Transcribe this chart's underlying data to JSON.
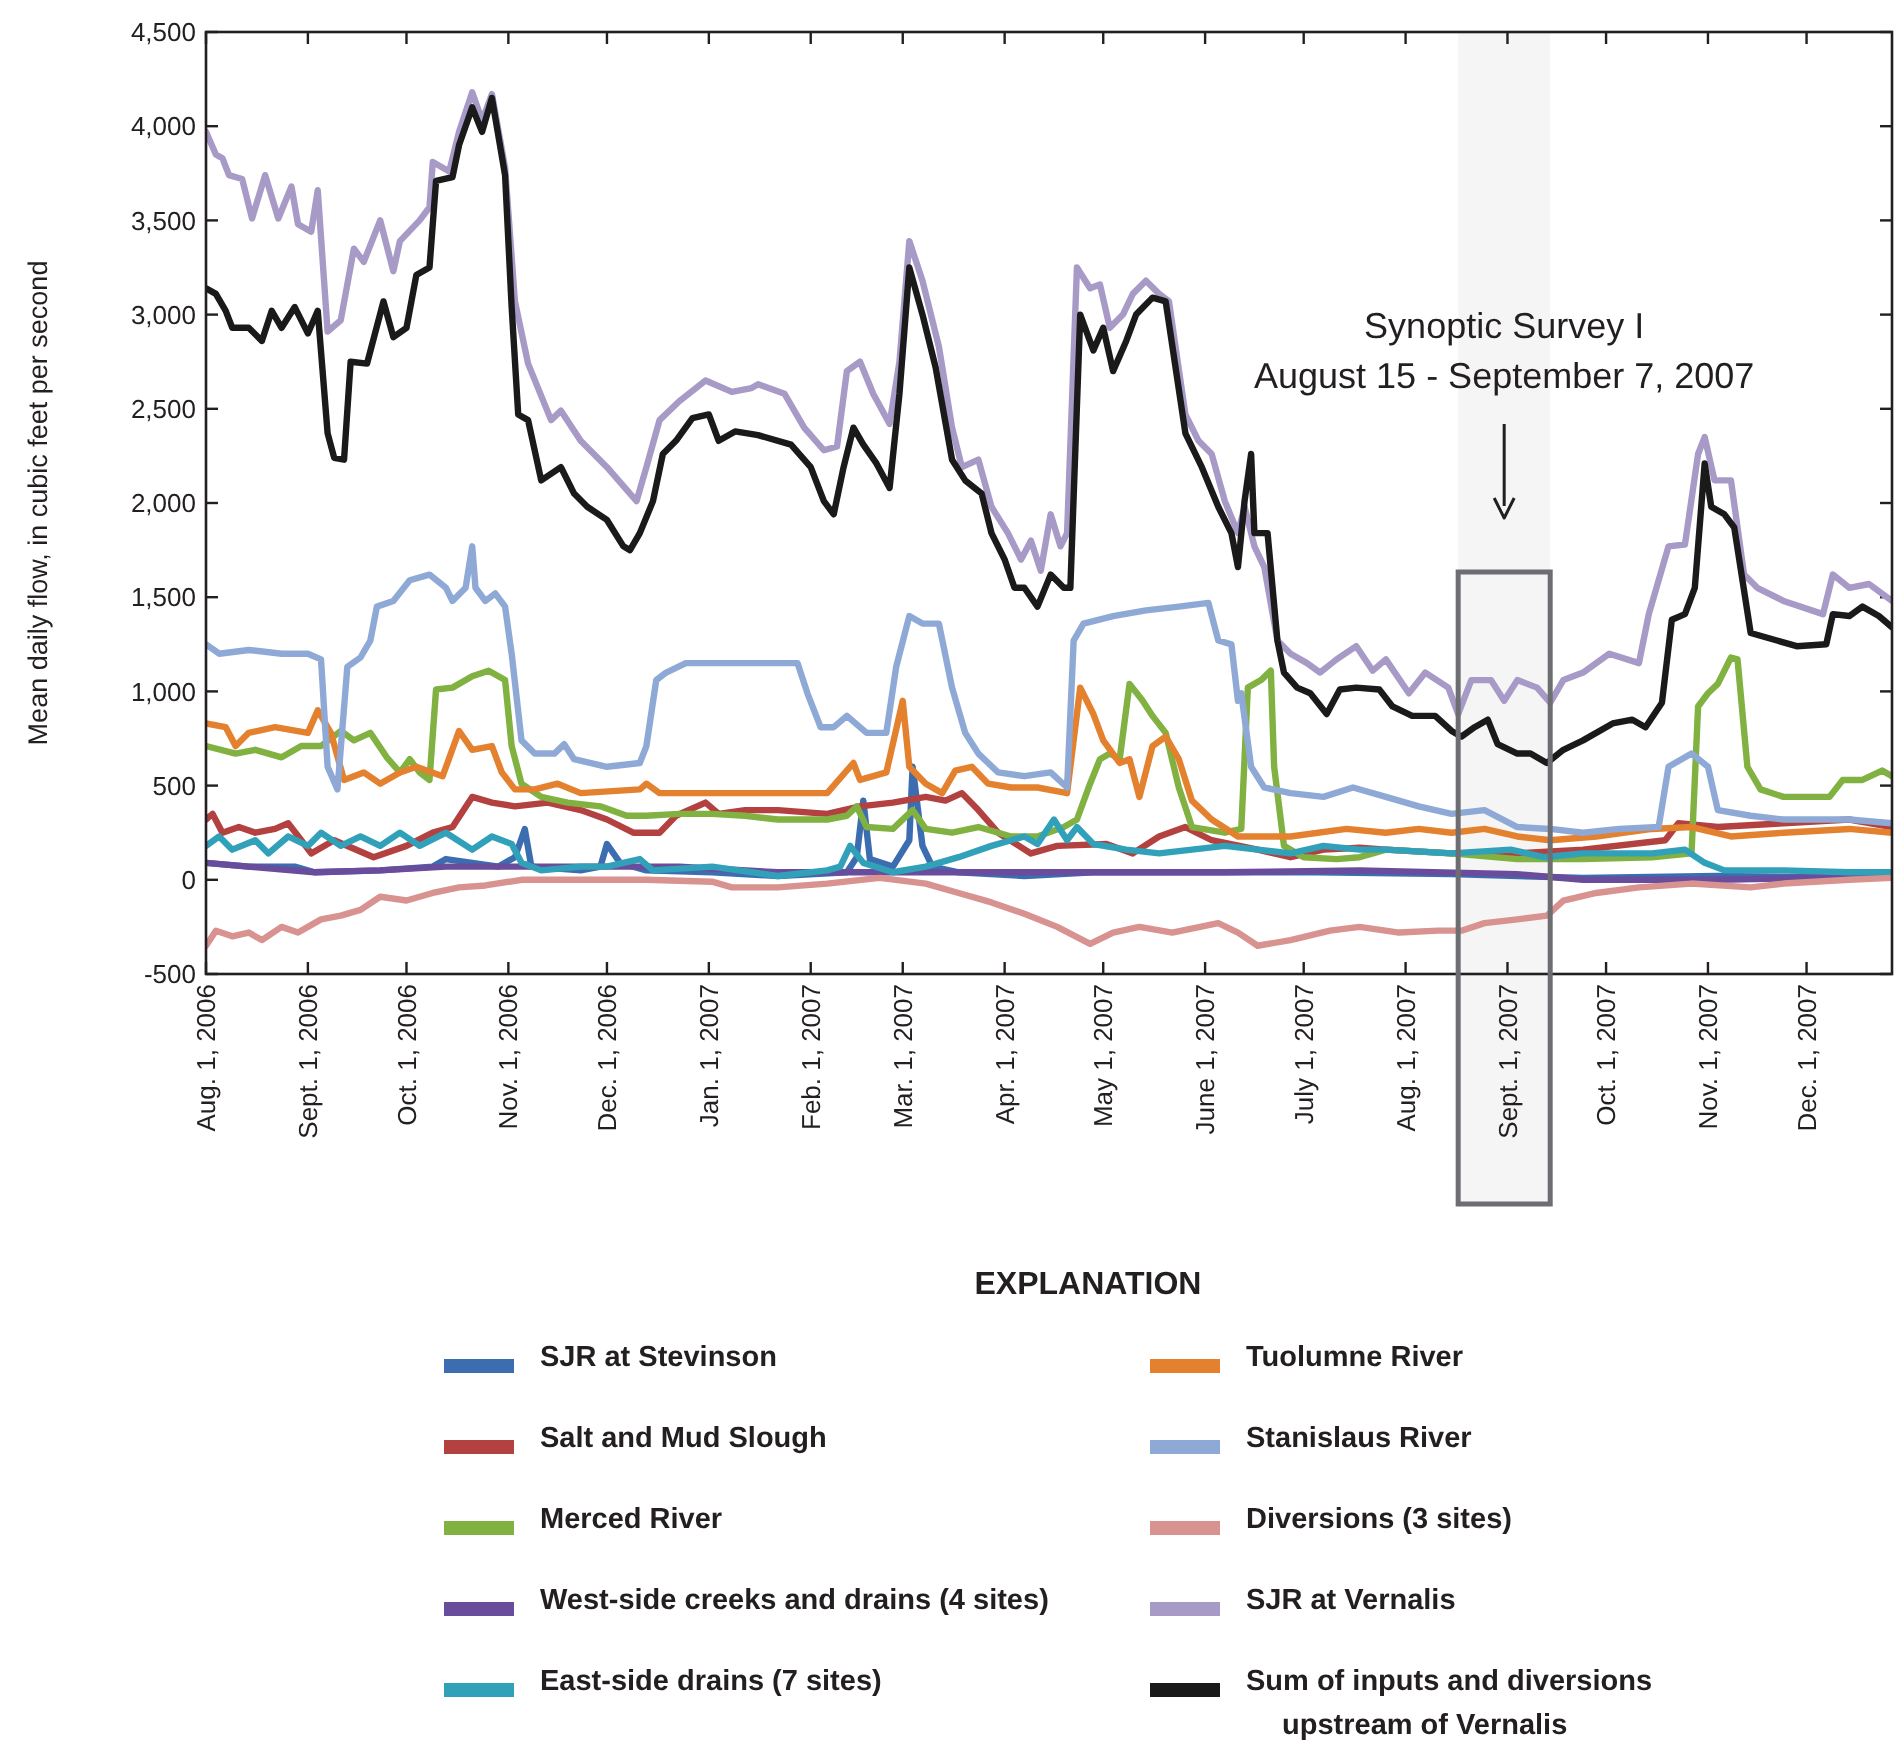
{
  "chart_data": {
    "type": "line",
    "ylabel": "Mean daily flow, in cubic feet per second",
    "legend": "bottom",
    "legend_title": "EXPLANATION",
    "xlim": [
      "2006-08-01",
      "2007-12-27"
    ],
    "xticks": [
      {
        "value": "2006-08-01",
        "label": "Aug. 1, 2006"
      },
      {
        "value": "2006-09-01",
        "label": "Sept. 1, 2006"
      },
      {
        "value": "2006-10-01",
        "label": "Oct. 1, 2006"
      },
      {
        "value": "2006-11-01",
        "label": "Nov. 1, 2006"
      },
      {
        "value": "2006-12-01",
        "label": "Dec. 1, 2006"
      },
      {
        "value": "2007-01-01",
        "label": "Jan. 1, 2007"
      },
      {
        "value": "2007-02-01",
        "label": "Feb. 1, 2007"
      },
      {
        "value": "2007-03-01",
        "label": "Mar. 1, 2007"
      },
      {
        "value": "2007-04-01",
        "label": "Apr. 1, 2007"
      },
      {
        "value": "2007-05-01",
        "label": "May 1, 2007"
      },
      {
        "value": "2007-06-01",
        "label": "June 1, 2007"
      },
      {
        "value": "2007-07-01",
        "label": "July 1, 2007"
      },
      {
        "value": "2007-08-01",
        "label": "Aug. 1, 2007"
      },
      {
        "value": "2007-09-01",
        "label": "Sept. 1, 2007"
      },
      {
        "value": "2007-10-01",
        "label": "Oct. 1, 2007"
      },
      {
        "value": "2007-11-01",
        "label": "Nov. 1, 2007"
      },
      {
        "value": "2007-12-01",
        "label": "Dec. 1, 2007"
      }
    ],
    "ylim": [
      -500,
      4500
    ],
    "yticks": [
      -500,
      0,
      500,
      {
        "value": 1000,
        "label": "1,000"
      },
      {
        "value": 1500,
        "label": "1,500"
      },
      {
        "value": 2000,
        "label": "2,000"
      },
      {
        "value": 2500,
        "label": "2,500"
      },
      {
        "value": 3000,
        "label": "3,000"
      },
      {
        "value": 3500,
        "label": "3,500"
      },
      {
        "value": 4000,
        "label": "4,000"
      },
      {
        "value": 4500,
        "label": "4,500"
      }
    ],
    "bands": [
      {
        "axis": "x",
        "from": "2007-08-17",
        "to": "2007-09-14",
        "label": "Synoptic Survey I\nAugust 15 - September 7, 2007",
        "color": "#6d6e71"
      }
    ],
    "series": [
      {
        "name": "SJR at Stevinson",
        "color": "#3b6db0",
        "x": [
          "2006-08-01",
          "2006-08-14",
          "2006-08-28",
          "2006-09-03",
          "2006-09-23",
          "2006-10-09",
          "2006-10-13",
          "2006-10-29",
          "2006-11-03",
          "2006-11-06",
          "2006-11-08",
          "2006-11-23",
          "2006-11-29",
          "2006-12-01",
          "2006-12-05",
          "2006-12-13",
          "2007-01-02",
          "2007-01-22",
          "2007-02-12",
          "2007-02-15",
          "2007-02-17",
          "2007-02-19",
          "2007-02-26",
          "2007-03-03",
          "2007-03-04",
          "2007-03-07",
          "2007-03-10",
          "2007-03-18",
          "2007-04-07",
          "2007-04-28",
          "2007-06-07",
          "2007-07-05",
          "2007-08-15",
          "2007-09-24",
          "2007-11-04",
          "2007-12-27"
        ],
        "values": [
          90,
          70,
          70,
          40,
          50,
          70,
          110,
          70,
          120,
          270,
          70,
          50,
          70,
          190,
          90,
          50,
          40,
          20,
          40,
          120,
          420,
          110,
          70,
          210,
          600,
          180,
          70,
          40,
          20,
          40,
          40,
          40,
          30,
          10,
          20,
          10
        ]
      },
      {
        "name": "Salt and Mud Slough",
        "color": "#b2413f",
        "x": [
          "2006-08-01",
          "2006-08-03",
          "2006-08-06",
          "2006-08-11",
          "2006-08-16",
          "2006-08-22",
          "2006-08-26",
          "2006-08-30",
          "2006-09-02",
          "2006-09-09",
          "2006-09-21",
          "2006-10-01",
          "2006-10-09",
          "2006-10-15",
          "2006-10-21",
          "2006-10-27",
          "2006-11-03",
          "2006-11-13",
          "2006-11-23",
          "2006-12-01",
          "2006-12-09",
          "2006-12-17",
          "2006-12-22",
          "2006-12-31",
          "2007-01-04",
          "2007-01-12",
          "2007-01-22",
          "2007-02-06",
          "2007-02-16",
          "2007-02-26",
          "2007-03-08",
          "2007-03-14",
          "2007-03-19",
          "2007-03-24",
          "2007-03-30",
          "2007-04-09",
          "2007-04-17",
          "2007-05-02",
          "2007-05-10",
          "2007-05-18",
          "2007-05-26",
          "2007-06-03",
          "2007-06-17",
          "2007-06-27",
          "2007-07-07",
          "2007-07-18",
          "2007-07-26",
          "2007-08-15",
          "2007-09-04",
          "2007-09-24",
          "2007-10-19",
          "2007-10-23",
          "2007-11-04",
          "2007-11-24",
          "2007-12-14",
          "2007-12-27"
        ],
        "values": [
          320,
          350,
          250,
          280,
          250,
          270,
          300,
          210,
          140,
          210,
          120,
          180,
          250,
          280,
          440,
          410,
          390,
          410,
          370,
          320,
          250,
          250,
          340,
          410,
          350,
          370,
          370,
          350,
          390,
          410,
          440,
          420,
          460,
          370,
          250,
          140,
          180,
          190,
          140,
          230,
          280,
          210,
          160,
          120,
          160,
          170,
          160,
          140,
          140,
          160,
          210,
          300,
          280,
          300,
          320,
          280
        ]
      },
      {
        "name": "Merced River",
        "color": "#80b141",
        "x": [
          "2006-08-01",
          "2006-08-10",
          "2006-08-16",
          "2006-08-24",
          "2006-08-30",
          "2006-09-05",
          "2006-09-11",
          "2006-09-15",
          "2006-09-20",
          "2006-09-25",
          "2006-09-29",
          "2006-10-02",
          "2006-10-05",
          "2006-10-08",
          "2006-10-10",
          "2006-10-15",
          "2006-10-21",
          "2006-10-26",
          "2006-10-31",
          "2006-11-02",
          "2006-11-05",
          "2006-11-11",
          "2006-11-19",
          "2006-11-29",
          "2006-12-07",
          "2006-12-13",
          "2006-12-23",
          "2007-01-02",
          "2007-01-12",
          "2007-01-22",
          "2007-02-06",
          "2007-02-12",
          "2007-02-15",
          "2007-02-18",
          "2007-02-26",
          "2007-03-04",
          "2007-03-08",
          "2007-03-16",
          "2007-03-24",
          "2007-04-03",
          "2007-04-11",
          "2007-04-19",
          "2007-04-23",
          "2007-04-27",
          "2007-04-30",
          "2007-05-03",
          "2007-05-06",
          "2007-05-09",
          "2007-05-13",
          "2007-05-16",
          "2007-05-20",
          "2007-05-24",
          "2007-05-28",
          "2007-06-07",
          "2007-06-12",
          "2007-06-14",
          "2007-06-18",
          "2007-06-21",
          "2007-06-22",
          "2007-06-25",
          "2007-07-01",
          "2007-07-11",
          "2007-07-18",
          "2007-07-26",
          "2007-08-15",
          "2007-09-04",
          "2007-09-24",
          "2007-10-15",
          "2007-10-27",
          "2007-10-29",
          "2007-11-01",
          "2007-11-04",
          "2007-11-08",
          "2007-11-10",
          "2007-11-13",
          "2007-11-17",
          "2007-11-24",
          "2007-12-08",
          "2007-12-12",
          "2007-12-18",
          "2007-12-24",
          "2007-12-27"
        ],
        "values": [
          710,
          670,
          690,
          650,
          710,
          710,
          790,
          740,
          780,
          650,
          570,
          640,
          570,
          530,
          1010,
          1020,
          1080,
          1110,
          1060,
          710,
          510,
          440,
          410,
          390,
          340,
          340,
          350,
          350,
          340,
          320,
          320,
          340,
          390,
          280,
          270,
          370,
          270,
          250,
          280,
          230,
          230,
          280,
          320,
          510,
          640,
          670,
          640,
          1040,
          950,
          870,
          780,
          490,
          280,
          250,
          270,
          1020,
          1060,
          1110,
          600,
          180,
          120,
          110,
          120,
          160,
          140,
          110,
          110,
          120,
          140,
          920,
          990,
          1040,
          1180,
          1170,
          600,
          480,
          440,
          440,
          530,
          530,
          580,
          550
        ]
      },
      {
        "name": "West-side creeks and drains (4 sites)",
        "color": "#6a4c9c",
        "x": [
          "2006-08-01",
          "2006-08-14",
          "2006-09-03",
          "2006-09-23",
          "2006-10-13",
          "2006-11-03",
          "2006-11-23",
          "2006-12-23",
          "2007-01-22",
          "2007-04-07",
          "2007-06-07",
          "2007-07-18",
          "2007-09-04",
          "2007-09-24",
          "2007-11-04",
          "2007-12-27"
        ],
        "values": [
          90,
          70,
          40,
          50,
          70,
          70,
          70,
          70,
          40,
          40,
          40,
          50,
          30,
          0,
          0,
          20
        ]
      },
      {
        "name": "East-side drains (7 sites)",
        "color": "#31a1ba",
        "x": [
          "2006-08-01",
          "2006-08-05",
          "2006-08-09",
          "2006-08-16",
          "2006-08-20",
          "2006-08-26",
          "2006-09-01",
          "2006-09-05",
          "2006-09-11",
          "2006-09-17",
          "2006-09-23",
          "2006-09-29",
          "2006-10-05",
          "2006-10-13",
          "2006-10-21",
          "2006-10-27",
          "2006-11-02",
          "2006-11-05",
          "2006-11-11",
          "2006-11-23",
          "2006-12-01",
          "2006-12-11",
          "2006-12-15",
          "2007-01-02",
          "2007-01-22",
          "2007-02-06",
          "2007-02-10",
          "2007-02-13",
          "2007-02-17",
          "2007-02-26",
          "2007-03-08",
          "2007-03-18",
          "2007-03-28",
          "2007-04-07",
          "2007-04-11",
          "2007-04-16",
          "2007-04-20",
          "2007-04-23",
          "2007-04-28",
          "2007-05-08",
          "2007-05-18",
          "2007-05-28",
          "2007-06-07",
          "2007-06-17",
          "2007-06-27",
          "2007-07-07",
          "2007-07-18",
          "2007-07-26",
          "2007-08-15",
          "2007-09-02",
          "2007-09-12",
          "2007-09-24",
          "2007-10-15",
          "2007-10-25",
          "2007-10-31",
          "2007-11-06",
          "2007-11-24",
          "2007-12-14",
          "2007-12-27"
        ],
        "values": [
          180,
          230,
          160,
          210,
          140,
          230,
          180,
          250,
          180,
          230,
          180,
          250,
          180,
          250,
          160,
          230,
          190,
          90,
          50,
          70,
          70,
          110,
          50,
          70,
          20,
          50,
          70,
          180,
          90,
          40,
          70,
          120,
          180,
          230,
          190,
          320,
          210,
          280,
          190,
          160,
          140,
          160,
          180,
          160,
          140,
          180,
          160,
          160,
          140,
          160,
          120,
          140,
          140,
          160,
          90,
          50,
          50,
          40,
          40
        ]
      },
      {
        "name": "Tuolumne River",
        "color": "#e4812f",
        "x": [
          "2006-08-01",
          "2006-08-07",
          "2006-08-10",
          "2006-08-14",
          "2006-08-22",
          "2006-09-01",
          "2006-09-04",
          "2006-09-08",
          "2006-09-12",
          "2006-09-18",
          "2006-09-23",
          "2006-09-29",
          "2006-10-04",
          "2006-10-12",
          "2006-10-17",
          "2006-10-21",
          "2006-10-27",
          "2006-10-30",
          "2006-11-03",
          "2006-11-09",
          "2006-11-16",
          "2006-11-23",
          "2006-12-11",
          "2006-12-13",
          "2006-12-17",
          "2007-01-02",
          "2007-02-06",
          "2007-02-14",
          "2007-02-16",
          "2007-02-24",
          "2007-03-01",
          "2007-03-03",
          "2007-03-08",
          "2007-03-13",
          "2007-03-17",
          "2007-03-22",
          "2007-03-27",
          "2007-04-03",
          "2007-04-11",
          "2007-04-20",
          "2007-04-24",
          "2007-04-28",
          "2007-05-01",
          "2007-05-06",
          "2007-05-09",
          "2007-05-12",
          "2007-05-16",
          "2007-05-20",
          "2007-05-24",
          "2007-05-28",
          "2007-06-03",
          "2007-06-11",
          "2007-06-27",
          "2007-07-14",
          "2007-07-26",
          "2007-08-05",
          "2007-08-15",
          "2007-08-25",
          "2007-09-04",
          "2007-09-14",
          "2007-09-28",
          "2007-10-15",
          "2007-10-27",
          "2007-11-08",
          "2007-11-24",
          "2007-12-14",
          "2007-12-27"
        ],
        "values": [
          830,
          810,
          710,
          780,
          810,
          780,
          900,
          780,
          530,
          570,
          510,
          570,
          600,
          550,
          790,
          690,
          710,
          570,
          480,
          480,
          510,
          460,
          480,
          510,
          460,
          460,
          460,
          620,
          530,
          570,
          950,
          600,
          510,
          460,
          580,
          600,
          510,
          490,
          490,
          460,
          1020,
          880,
          740,
          620,
          640,
          440,
          710,
          760,
          640,
          420,
          320,
          230,
          230,
          270,
          250,
          270,
          250,
          270,
          230,
          210,
          230,
          270,
          280,
          230,
          250,
          270,
          250
        ]
      },
      {
        "name": "Stanislaus River",
        "color": "#8fa9d6",
        "x": [
          "2006-08-01",
          "2006-08-05",
          "2006-08-14",
          "2006-08-24",
          "2006-09-01",
          "2006-09-05",
          "2006-09-07",
          "2006-09-10",
          "2006-09-13",
          "2006-09-17",
          "2006-09-20",
          "2006-09-22",
          "2006-09-27",
          "2006-10-02",
          "2006-10-08",
          "2006-10-13",
          "2006-10-15",
          "2006-10-19",
          "2006-10-21",
          "2006-10-22",
          "2006-10-25",
          "2006-10-28",
          "2006-10-31",
          "2006-11-02",
          "2006-11-05",
          "2006-11-09",
          "2006-11-15",
          "2006-11-18",
          "2006-11-21",
          "2006-12-01",
          "2006-12-11",
          "2006-12-13",
          "2006-12-16",
          "2006-12-19",
          "2006-12-25",
          "2007-01-22",
          "2007-01-28",
          "2007-01-31",
          "2007-02-04",
          "2007-02-08",
          "2007-02-12",
          "2007-02-18",
          "2007-02-24",
          "2007-02-27",
          "2007-03-03",
          "2007-03-07",
          "2007-03-12",
          "2007-03-16",
          "2007-03-20",
          "2007-03-24",
          "2007-03-30",
          "2007-04-07",
          "2007-04-15",
          "2007-04-20",
          "2007-04-22",
          "2007-04-25",
          "2007-05-04",
          "2007-05-14",
          "2007-05-24",
          "2007-06-02",
          "2007-06-05",
          "2007-06-09",
          "2007-06-11",
          "2007-06-12",
          "2007-06-15",
          "2007-06-19",
          "2007-06-27",
          "2007-07-07",
          "2007-07-16",
          "2007-07-26",
          "2007-08-05",
          "2007-08-15",
          "2007-08-25",
          "2007-09-04",
          "2007-09-14",
          "2007-09-24",
          "2007-10-05",
          "2007-10-17",
          "2007-10-20",
          "2007-10-27",
          "2007-11-01",
          "2007-11-04",
          "2007-11-14",
          "2007-11-24",
          "2007-12-14",
          "2007-12-27"
        ],
        "values": [
          1250,
          1200,
          1220,
          1200,
          1200,
          1170,
          600,
          480,
          1130,
          1180,
          1270,
          1450,
          1480,
          1590,
          1620,
          1550,
          1480,
          1550,
          1770,
          1550,
          1480,
          1520,
          1450,
          1200,
          740,
          670,
          670,
          720,
          640,
          600,
          620,
          710,
          1060,
          1100,
          1150,
          1150,
          1150,
          990,
          810,
          810,
          870,
          780,
          780,
          1130,
          1400,
          1360,
          1360,
          1020,
          780,
          670,
          570,
          550,
          570,
          490,
          1270,
          1360,
          1400,
          1430,
          1450,
          1470,
          1270,
          1250,
          950,
          990,
          600,
          490,
          460,
          440,
          490,
          440,
          390,
          350,
          370,
          280,
          270,
          250,
          270,
          280,
          600,
          670,
          600,
          370,
          340,
          320,
          320,
          300
        ]
      },
      {
        "name": "Diversions (3 sites)",
        "color": "#d8928f",
        "x": [
          "2006-08-01",
          "2006-08-04",
          "2006-08-09",
          "2006-08-14",
          "2006-08-18",
          "2006-08-24",
          "2006-08-29",
          "2006-09-05",
          "2006-09-11",
          "2006-09-17",
          "2006-09-23",
          "2006-10-01",
          "2006-10-09",
          "2006-10-17",
          "2006-10-25",
          "2006-11-05",
          "2006-11-23",
          "2006-12-13",
          "2007-01-02",
          "2007-01-08",
          "2007-01-22",
          "2007-02-06",
          "2007-02-22",
          "2007-03-08",
          "2007-03-18",
          "2007-03-28",
          "2007-04-07",
          "2007-04-17",
          "2007-04-27",
          "2007-05-04",
          "2007-05-12",
          "2007-05-22",
          "2007-06-05",
          "2007-06-11",
          "2007-06-17",
          "2007-06-27",
          "2007-07-09",
          "2007-07-18",
          "2007-07-30",
          "2007-08-11",
          "2007-08-18",
          "2007-08-25",
          "2007-09-04",
          "2007-09-13",
          "2007-09-18",
          "2007-09-28",
          "2007-10-11",
          "2007-10-27",
          "2007-11-14",
          "2007-11-24",
          "2007-12-14",
          "2007-12-27"
        ],
        "values": [
          -350,
          -270,
          -300,
          -280,
          -320,
          -250,
          -280,
          -210,
          -190,
          -160,
          -90,
          -110,
          -70,
          -40,
          -30,
          0,
          0,
          0,
          -10,
          -40,
          -40,
          -20,
          10,
          -20,
          -70,
          -120,
          -180,
          -250,
          -340,
          -280,
          -250,
          -280,
          -230,
          -280,
          -350,
          -320,
          -270,
          -250,
          -280,
          -270,
          -270,
          -230,
          -210,
          -190,
          -110,
          -70,
          -40,
          -20,
          -40,
          -20,
          0,
          10
        ]
      },
      {
        "name": "SJR at Vernalis",
        "color": "#a89ac7",
        "x": [
          "2006-08-01",
          "2006-08-04",
          "2006-08-06",
          "2006-08-08",
          "2006-08-12",
          "2006-08-15",
          "2006-08-19",
          "2006-08-23",
          "2006-08-27",
          "2006-08-29",
          "2006-09-02",
          "2006-09-04",
          "2006-09-07",
          "2006-09-11",
          "2006-09-15",
          "2006-09-18",
          "2006-09-23",
          "2006-09-27",
          "2006-09-29",
          "2006-10-05",
          "2006-10-08",
          "2006-10-09",
          "2006-10-14",
          "2006-10-17",
          "2006-10-21",
          "2006-10-24",
          "2006-10-27",
          "2006-10-31",
          "2006-11-03",
          "2006-11-07",
          "2006-11-14",
          "2006-11-17",
          "2006-11-23",
          "2006-12-01",
          "2006-12-10",
          "2006-12-13",
          "2006-12-17",
          "2006-12-23",
          "2006-12-31",
          "2007-01-08",
          "2007-01-14",
          "2007-01-16",
          "2007-01-24",
          "2007-01-30",
          "2007-02-05",
          "2007-02-09",
          "2007-02-12",
          "2007-02-16",
          "2007-02-20",
          "2007-02-25",
          "2007-02-28",
          "2007-03-03",
          "2007-03-07",
          "2007-03-12",
          "2007-03-16",
          "2007-03-19",
          "2007-03-24",
          "2007-03-28",
          "2007-04-02",
          "2007-04-06",
          "2007-04-09",
          "2007-04-12",
          "2007-04-15",
          "2007-04-18",
          "2007-04-20",
          "2007-04-23",
          "2007-04-27",
          "2007-04-30",
          "2007-05-03",
          "2007-05-07",
          "2007-05-10",
          "2007-05-14",
          "2007-05-18",
          "2007-05-21",
          "2007-05-26",
          "2007-05-30",
          "2007-06-03",
          "2007-06-07",
          "2007-06-11",
          "2007-06-13",
          "2007-06-16",
          "2007-06-19",
          "2007-06-23",
          "2007-06-27",
          "2007-07-02",
          "2007-07-06",
          "2007-07-11",
          "2007-07-17",
          "2007-07-22",
          "2007-07-26",
          "2007-08-02",
          "2007-08-07",
          "2007-08-14",
          "2007-08-17",
          "2007-08-21",
          "2007-08-27",
          "2007-08-31",
          "2007-09-04",
          "2007-09-10",
          "2007-09-14",
          "2007-09-18",
          "2007-09-24",
          "2007-10-02",
          "2007-10-11",
          "2007-10-14",
          "2007-10-20",
          "2007-10-25",
          "2007-10-29",
          "2007-10-31",
          "2007-11-03",
          "2007-11-08",
          "2007-11-12",
          "2007-11-16",
          "2007-11-24",
          "2007-12-06",
          "2007-12-09",
          "2007-12-14",
          "2007-12-20",
          "2007-12-27"
        ],
        "values": [
          3970,
          3850,
          3830,
          3740,
          3720,
          3510,
          3740,
          3510,
          3680,
          3480,
          3440,
          3660,
          2910,
          2970,
          3350,
          3280,
          3500,
          3230,
          3390,
          3500,
          3570,
          3810,
          3760,
          3970,
          4180,
          4030,
          4170,
          3780,
          3070,
          2740,
          2440,
          2490,
          2330,
          2190,
          2010,
          2190,
          2440,
          2540,
          2650,
          2590,
          2610,
          2630,
          2580,
          2400,
          2280,
          2300,
          2700,
          2750,
          2580,
          2420,
          2750,
          3390,
          3180,
          2830,
          2400,
          2190,
          2230,
          1980,
          1840,
          1700,
          1800,
          1640,
          1940,
          1770,
          1840,
          3250,
          3140,
          3160,
          2930,
          3000,
          3110,
          3180,
          3110,
          3070,
          2470,
          2330,
          2260,
          2010,
          1840,
          1980,
          1770,
          1660,
          1270,
          1200,
          1150,
          1100,
          1170,
          1240,
          1110,
          1170,
          990,
          1100,
          1020,
          880,
          1060,
          1060,
          950,
          1060,
          1020,
          940,
          1060,
          1100,
          1200,
          1150,
          1410,
          1770,
          1780,
          2260,
          2350,
          2120,
          2120,
          1620,
          1550,
          1480,
          1410,
          1620,
          1550,
          1570,
          1480
        ]
      },
      {
        "name": "Sum of inputs and diversions upstream of Vernalis",
        "color": "#1a1a1a",
        "x": [
          "2006-08-01",
          "2006-08-04",
          "2006-08-07",
          "2006-08-09",
          "2006-08-14",
          "2006-08-18",
          "2006-08-21",
          "2006-08-24",
          "2006-08-28",
          "2006-09-01",
          "2006-09-04",
          "2006-09-07",
          "2006-09-09",
          "2006-09-12",
          "2006-09-14",
          "2006-09-19",
          "2006-09-24",
          "2006-09-27",
          "2006-10-01",
          "2006-10-04",
          "2006-10-08",
          "2006-10-10",
          "2006-10-15",
          "2006-10-17",
          "2006-10-21",
          "2006-10-24",
          "2006-10-27",
          "2006-10-31",
          "2006-11-02",
          "2006-11-04",
          "2006-11-07",
          "2006-11-11",
          "2006-11-17",
          "2006-11-21",
          "2006-11-25",
          "2006-12-01",
          "2006-12-06",
          "2006-12-08",
          "2006-12-11",
          "2006-12-15",
          "2006-12-18",
          "2006-12-22",
          "2006-12-27",
          "2007-01-01",
          "2007-01-04",
          "2007-01-09",
          "2007-01-16",
          "2007-01-26",
          "2007-02-01",
          "2007-02-05",
          "2007-02-08",
          "2007-02-11",
          "2007-02-14",
          "2007-02-17",
          "2007-02-21",
          "2007-02-25",
          "2007-02-28",
          "2007-03-03",
          "2007-03-07",
          "2007-03-11",
          "2007-03-16",
          "2007-03-20",
          "2007-03-25",
          "2007-03-28",
          "2007-04-01",
          "2007-04-04",
          "2007-04-07",
          "2007-04-11",
          "2007-04-15",
          "2007-04-19",
          "2007-04-21",
          "2007-04-24",
          "2007-04-28",
          "2007-05-01",
          "2007-05-04",
          "2007-05-08",
          "2007-05-11",
          "2007-05-16",
          "2007-05-20",
          "2007-05-26",
          "2007-05-31",
          "2007-06-05",
          "2007-06-09",
          "2007-06-11",
          "2007-06-13",
          "2007-06-15",
          "2007-06-16",
          "2007-06-20",
          "2007-06-23",
          "2007-06-25",
          "2007-06-29",
          "2007-07-03",
          "2007-07-08",
          "2007-07-12",
          "2007-07-17",
          "2007-07-24",
          "2007-07-28",
          "2007-08-03",
          "2007-08-10",
          "2007-08-15",
          "2007-08-18",
          "2007-08-22",
          "2007-08-26",
          "2007-08-29",
          "2007-09-04",
          "2007-09-08",
          "2007-09-13",
          "2007-09-18",
          "2007-09-24",
          "2007-10-03",
          "2007-10-09",
          "2007-10-13",
          "2007-10-18",
          "2007-10-21",
          "2007-10-25",
          "2007-10-28",
          "2007-10-31",
          "2007-11-02",
          "2007-11-06",
          "2007-11-09",
          "2007-11-14",
          "2007-11-22",
          "2007-11-28",
          "2007-12-07",
          "2007-12-09",
          "2007-12-14",
          "2007-12-18",
          "2007-12-23",
          "2007-12-27"
        ],
        "values": [
          3140,
          3110,
          3020,
          2930,
          2930,
          2860,
          3020,
          2930,
          3040,
          2900,
          3020,
          2370,
          2240,
          2230,
          2750,
          2740,
          3070,
          2880,
          2930,
          3210,
          3250,
          3710,
          3730,
          3900,
          4100,
          3970,
          4150,
          3740,
          3040,
          2470,
          2440,
          2120,
          2190,
          2050,
          1980,
          1910,
          1770,
          1750,
          1840,
          2010,
          2260,
          2330,
          2450,
          2470,
          2330,
          2380,
          2360,
          2310,
          2190,
          2010,
          1940,
          2190,
          2400,
          2310,
          2210,
          2080,
          2580,
          3250,
          3000,
          2720,
          2230,
          2120,
          2050,
          1840,
          1700,
          1550,
          1550,
          1450,
          1620,
          1550,
          1550,
          3000,
          2810,
          2930,
          2700,
          2860,
          3000,
          3090,
          3070,
          2370,
          2190,
          1980,
          1840,
          1660,
          2010,
          2260,
          1840,
          1840,
          1270,
          1100,
          1020,
          990,
          880,
          1010,
          1020,
          1010,
          920,
          870,
          870,
          790,
          760,
          810,
          850,
          720,
          670,
          670,
          620,
          690,
          740,
          830,
          850,
          810,
          940,
          1380,
          1410,
          1550,
          2210,
          1980,
          1940,
          1870,
          1310,
          1270,
          1240,
          1250,
          1410,
          1400,
          1450,
          1400,
          1340
        ]
      }
    ]
  }
}
